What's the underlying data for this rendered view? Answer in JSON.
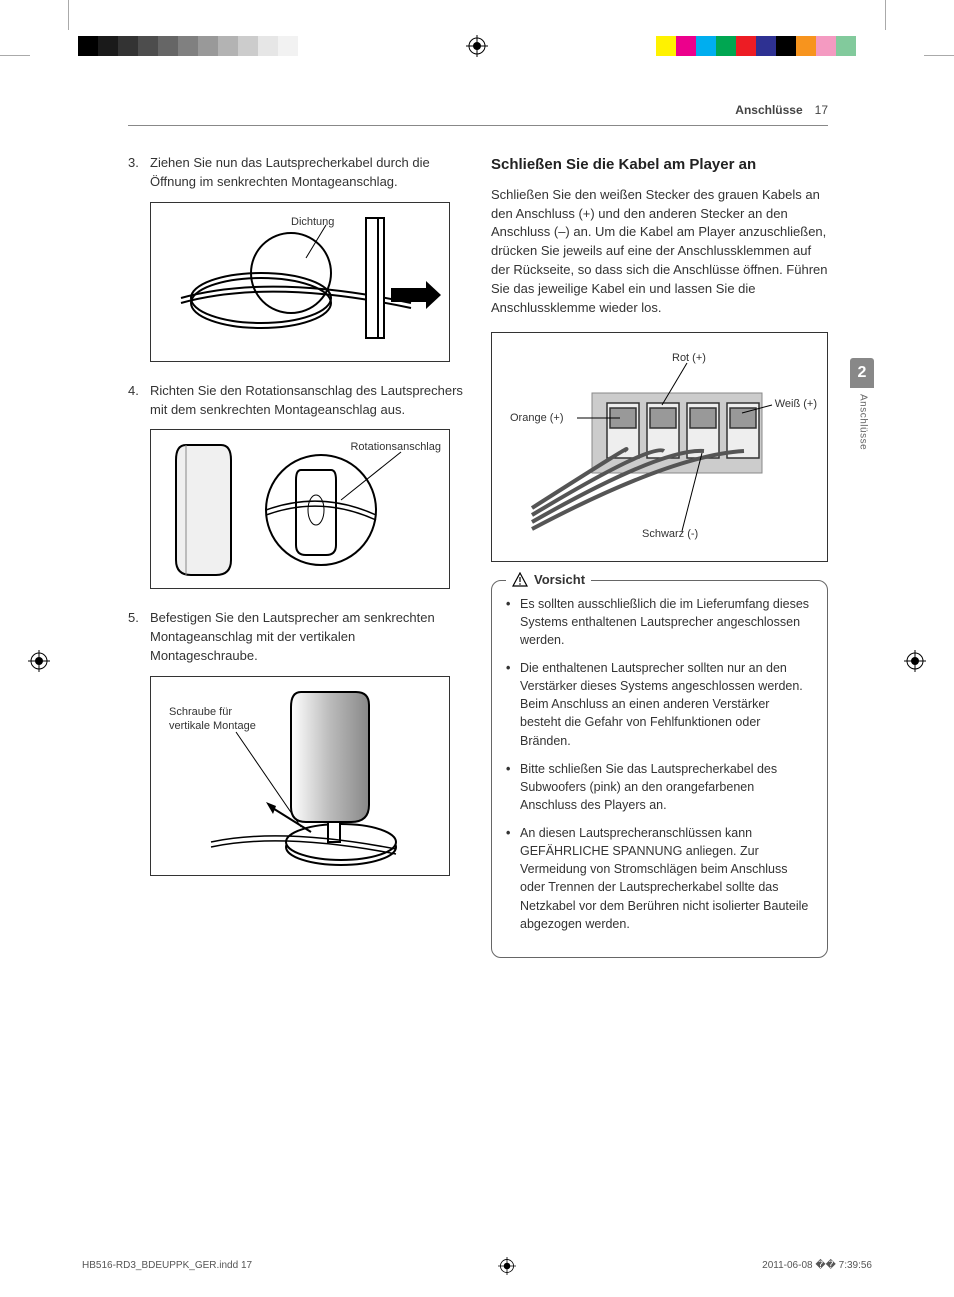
{
  "header": {
    "section": "Anschlüsse",
    "page_number": "17"
  },
  "side_tab": {
    "number": "2",
    "label": "Anschlüsse"
  },
  "color_bars": {
    "left_gray": [
      "#000000",
      "#1a1a1a",
      "#333333",
      "#4d4d4d",
      "#666666",
      "#808080",
      "#999999",
      "#b3b3b3",
      "#cccccc",
      "#e6e6e6",
      "#f2f2f2",
      "#ffffff",
      "#ffffff",
      "#ffffff"
    ],
    "right_process": [
      "#fff200",
      "#ec008c",
      "#00aeef",
      "#00a651",
      "#ed1c24",
      "#2e3192",
      "#000000",
      "#f7941e",
      "#f49ac1",
      "#82ca9c",
      "#ffffff"
    ]
  },
  "left_col": {
    "step3": {
      "num": "3.",
      "text": "Ziehen Sie nun das Lautsprecherkabel durch die Öffnung im senkrechten Montageanschlag."
    },
    "fig1_label": "Dichtung",
    "step4": {
      "num": "4.",
      "text": "Richten Sie den Rotationsanschlag des Lautsprechers mit dem senkrechten Montageanschlag aus."
    },
    "fig2_label": "Rotationsanschlag",
    "step5": {
      "num": "5.",
      "text": "Befestigen Sie den Lautsprecher am senkrechten Montageanschlag mit der vertikalen Montageschraube."
    },
    "fig3_label_line1": "Schraube für",
    "fig3_label_line2": "vertikale Montage"
  },
  "right_col": {
    "heading": "Schließen Sie die Kabel am Player an",
    "body": "Schließen Sie den weißen Stecker des grauen Kabels an den Anschluss (+) und den anderen Stecker an den Anschluss (–) an. Um die Kabel am Player anzuschließen, drücken Sie jeweils auf eine der Anschlussklemmen auf der Rückseite, so dass sich die Anschlüsse öffnen. Führen Sie das jeweilige Kabel ein und lassen Sie die Anschlussklemme wieder los.",
    "connector": {
      "rot": "Rot (+)",
      "weiss": "Weiß (+)",
      "orange": "Orange (+)",
      "schwarz": "Schwarz (-)"
    },
    "caution_title": "Vorsicht",
    "caution_items": [
      "Es sollten ausschließlich die im Lieferumfang dieses Systems enthaltenen Lautsprecher angeschlossen werden.",
      "Die enthaltenen Lautsprecher sollten nur an den Verstärker dieses Systems angeschlossen werden. Beim Anschluss an einen anderen Verstärker besteht die Gefahr von Fehlfunktionen oder Bränden.",
      "Bitte schließen Sie das Lautsprecherkabel des Subwoofers (pink) an den orangefarbenen Anschluss des Players an.",
      "An diesen Lautsprecheranschlüssen kann GEFÄHRLICHE SPANNUNG anliegen. Zur Vermeidung von Stromschlägen beim Anschluss oder Trennen der Lautsprecherkabel sollte das Netzkabel vor dem Berühren nicht isolierter Bauteile abgezogen werden."
    ]
  },
  "footer": {
    "file": "HB516-RD3_BDEUPPK_GER.indd   17",
    "timestamp": "2011-06-08   �� 7:39:56"
  }
}
